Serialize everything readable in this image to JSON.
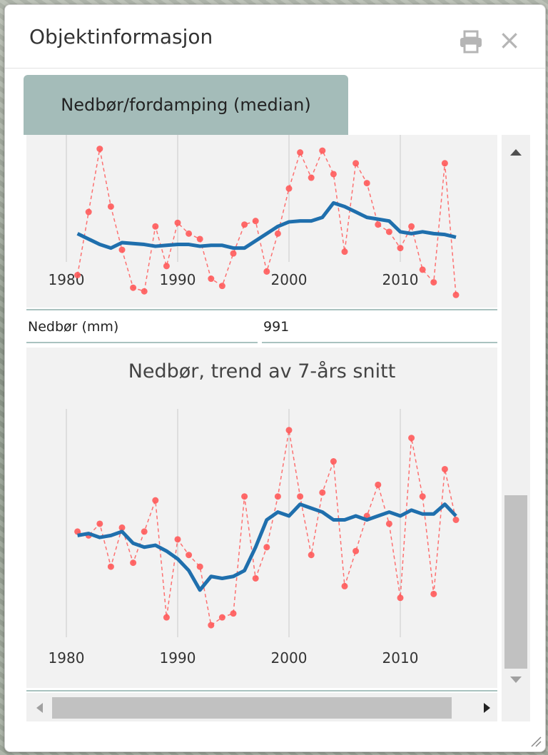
{
  "window": {
    "title": "Objektinformasjon",
    "print_icon": "print-icon",
    "close_label": "×"
  },
  "tabs": [
    {
      "label": "Nedbør/fordamping (median)",
      "active": true
    }
  ],
  "property": {
    "label": "Nedbør (mm)",
    "value": "991"
  },
  "colors": {
    "trend": "#1f6fad",
    "annual": "#ff5a5a",
    "tab_bg": "#a4bcb9",
    "chart_bg": "#f2f2f2"
  },
  "chart_data": [
    {
      "type": "line",
      "title": "",
      "x_ticks": [
        "1980",
        "1990",
        "2000",
        "2010"
      ],
      "xlim": [
        1979,
        2017
      ],
      "series": [
        {
          "style": "dashed-dots",
          "x": [
            1981,
            1982,
            1983,
            1984,
            1985,
            1986,
            1987,
            1988,
            1989,
            1990,
            1991,
            1992,
            1993,
            1994,
            1995,
            1996,
            1997,
            1998,
            1999,
            2000,
            2001,
            2002,
            2003,
            2004,
            2005,
            2006,
            2007,
            2008,
            2009,
            2010,
            2011,
            2012,
            2013,
            2014,
            2015
          ],
          "values": [
            1180,
            1530,
            1880,
            1560,
            1320,
            1110,
            1090,
            1450,
            1230,
            1470,
            1410,
            1380,
            1160,
            1120,
            1300,
            1460,
            1480,
            1200,
            1410,
            1660,
            1860,
            1720,
            1870,
            1740,
            1310,
            1800,
            1690,
            1460,
            1420,
            1330,
            1450,
            1210,
            1140,
            1800,
            1070
          ]
        },
        {
          "style": "trend",
          "x": [
            1981,
            1982,
            1983,
            1984,
            1985,
            1986,
            1987,
            1988,
            1989,
            1990,
            1991,
            1992,
            1993,
            1994,
            1995,
            1996,
            1997,
            1998,
            1999,
            2000,
            2001,
            2002,
            2003,
            2004,
            2005,
            2006,
            2007,
            2008,
            2009,
            2010,
            2011,
            2012,
            2013,
            2014,
            2015
          ],
          "values": [
            1410,
            1380,
            1350,
            1330,
            1360,
            1355,
            1350,
            1340,
            1345,
            1350,
            1350,
            1340,
            1345,
            1345,
            1330,
            1330,
            1370,
            1410,
            1450,
            1475,
            1480,
            1480,
            1500,
            1580,
            1560,
            1530,
            1500,
            1490,
            1480,
            1420,
            1410,
            1420,
            1410,
            1405,
            1390
          ]
        }
      ]
    },
    {
      "type": "line",
      "title": "Nedbør, trend av 7-års snitt",
      "x_ticks": [
        "1980",
        "1990",
        "2000",
        "2010"
      ],
      "xlim": [
        1979,
        2017
      ],
      "series": [
        {
          "style": "dashed-dots",
          "x": [
            1981,
            1982,
            1983,
            1984,
            1985,
            1986,
            1987,
            1988,
            1989,
            1990,
            1991,
            1992,
            1993,
            1994,
            1995,
            1996,
            1997,
            1998,
            1999,
            2000,
            2001,
            2002,
            2003,
            2004,
            2005,
            2006,
            2007,
            2008,
            2009,
            2010,
            2011,
            2012,
            2013,
            2014,
            2015
          ],
          "values": [
            1000,
            990,
            1020,
            910,
            1010,
            920,
            1000,
            1080,
            780,
            980,
            940,
            910,
            760,
            780,
            790,
            1090,
            880,
            960,
            1090,
            1260,
            1090,
            940,
            1100,
            1180,
            860,
            950,
            1040,
            1120,
            1020,
            830,
            1240,
            1090,
            840,
            1160,
            1030
          ]
        },
        {
          "style": "trend",
          "x": [
            1981,
            1982,
            1983,
            1984,
            1985,
            1986,
            1987,
            1988,
            1989,
            1990,
            1991,
            1992,
            1993,
            1994,
            1995,
            1996,
            1997,
            1998,
            1999,
            2000,
            2001,
            2002,
            2003,
            2004,
            2005,
            2006,
            2007,
            2008,
            2009,
            2010,
            2011,
            2012,
            2013,
            2014,
            2015
          ],
          "values": [
            990,
            995,
            985,
            990,
            1000,
            970,
            960,
            965,
            950,
            930,
            900,
            850,
            885,
            880,
            885,
            900,
            960,
            1030,
            1050,
            1040,
            1070,
            1060,
            1050,
            1030,
            1030,
            1040,
            1030,
            1040,
            1050,
            1040,
            1055,
            1045,
            1045,
            1070,
            1040
          ]
        }
      ]
    }
  ]
}
